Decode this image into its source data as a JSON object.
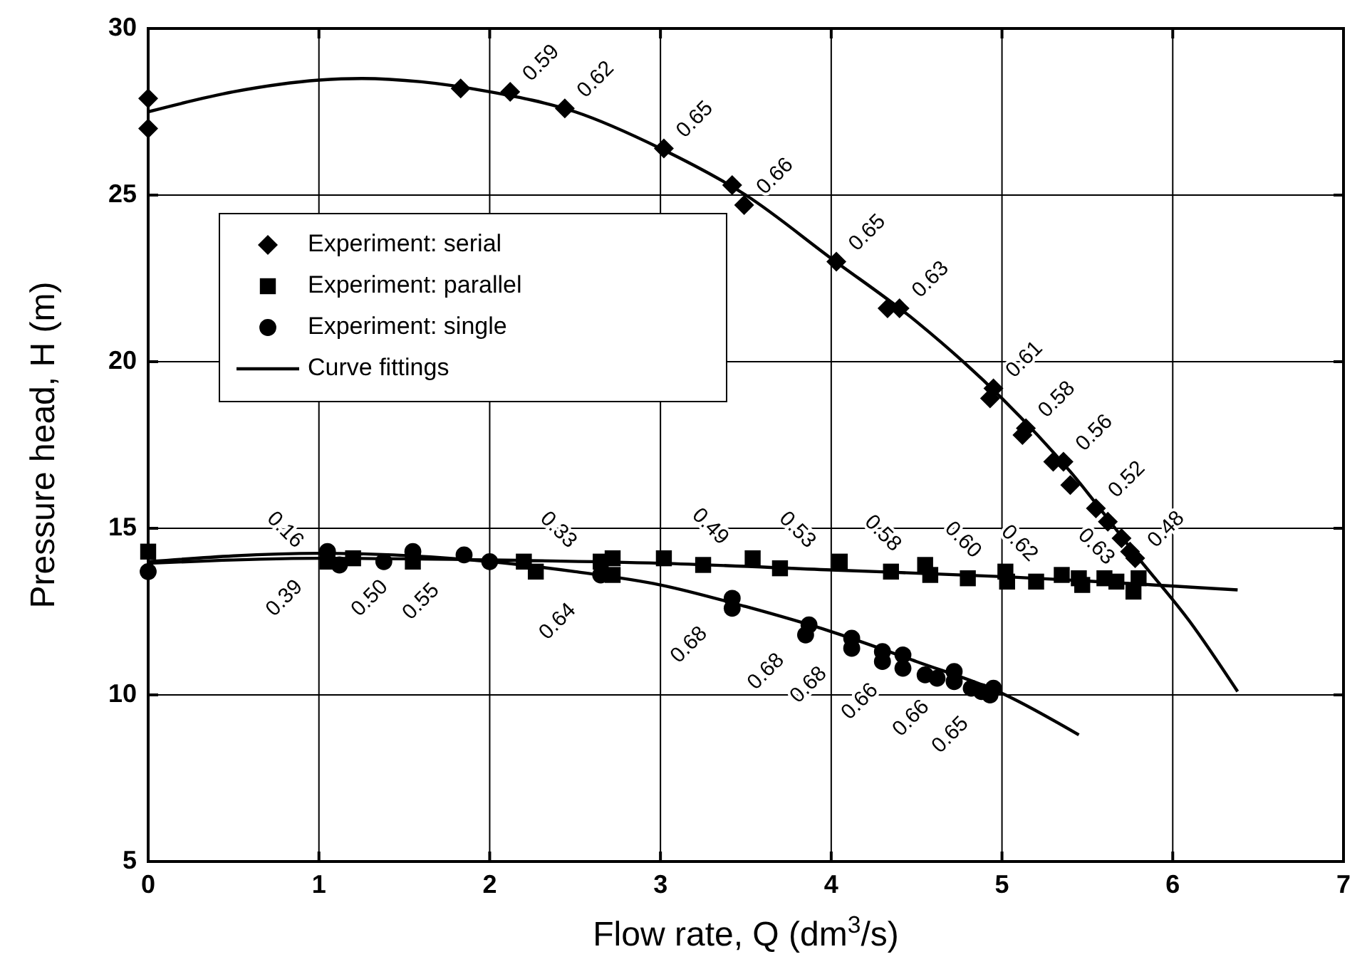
{
  "chart_data": {
    "type": "scatter",
    "xlabel": "Flow rate, Q (dm$^{3}$/s)",
    "ylabel": "Pressure head, H (m)",
    "xlim": [
      0,
      7
    ],
    "xticks": [
      0,
      1,
      2,
      3,
      4,
      5,
      6,
      7
    ],
    "ylim": [
      5,
      30
    ],
    "yticks": [
      5,
      10,
      15,
      20,
      25,
      30
    ],
    "grid": true,
    "legend": "top left",
    "series": [
      {
        "name": "Experiment: serial",
        "marker": "diamond",
        "color": "#000000",
        "x": [
          0,
          0,
          1.83,
          2.12,
          2.44,
          3.02,
          3.42,
          3.49,
          4.03,
          4.33,
          4.4,
          4.95,
          4.93,
          5.14,
          5.12,
          5.3,
          5.36,
          5.4,
          5.55,
          5.62,
          5.7,
          5.75,
          5.78
        ],
        "values": [
          27.9,
          27.0,
          28.2,
          28.1,
          27.6,
          26.4,
          25.3,
          24.7,
          23.0,
          21.6,
          21.6,
          19.2,
          18.9,
          18.0,
          17.8,
          17.0,
          17.0,
          16.3,
          15.6,
          15.2,
          14.7,
          14.3,
          14.1
        ]
      },
      {
        "name": "Experiment: parallel",
        "marker": "square",
        "color": "#000000",
        "x": [
          0,
          1.05,
          1.2,
          1.55,
          2.2,
          2.27,
          2.65,
          2.72,
          2.72,
          3.02,
          3.25,
          3.54,
          3.7,
          4.05,
          4.35,
          4.55,
          4.58,
          4.8,
          5.02,
          5.03,
          5.2,
          5.35,
          5.45,
          5.47,
          5.6,
          5.67,
          5.77,
          5.8
        ],
        "values": [
          14.3,
          14.0,
          14.1,
          14.0,
          14.0,
          13.7,
          14.0,
          14.1,
          13.6,
          14.1,
          13.9,
          14.1,
          13.8,
          14.0,
          13.7,
          13.9,
          13.6,
          13.5,
          13.7,
          13.4,
          13.4,
          13.6,
          13.5,
          13.3,
          13.5,
          13.4,
          13.1,
          13.5
        ]
      },
      {
        "name": "Experiment: single",
        "marker": "circle",
        "color": "#000000",
        "x": [
          0,
          1.05,
          1.12,
          1.38,
          1.55,
          1.85,
          2.0,
          2.65,
          3.42,
          3.42,
          3.87,
          3.85,
          4.12,
          4.12,
          4.3,
          4.3,
          4.42,
          4.42,
          4.55,
          4.62,
          4.72,
          4.72,
          4.82,
          4.88,
          4.95,
          4.93
        ],
        "values": [
          13.7,
          14.3,
          13.9,
          14.0,
          14.3,
          14.2,
          14.0,
          13.6,
          12.9,
          12.6,
          12.1,
          11.8,
          11.7,
          11.4,
          11.3,
          11.0,
          11.2,
          10.8,
          10.6,
          10.5,
          10.7,
          10.4,
          10.2,
          10.1,
          10.2,
          10.0
        ]
      },
      {
        "name": "Curve fittings",
        "type": "line",
        "marker": "none",
        "color": "#000000",
        "x": [
          0,
          0.5,
          1.0,
          1.25,
          1.6,
          2.0,
          2.5,
          3.0,
          3.5,
          4.0,
          4.5,
          5.0,
          5.4,
          5.8,
          6.1,
          6.38
        ],
        "values": [
          27.5,
          28.1,
          28.45,
          28.5,
          28.4,
          28.1,
          27.5,
          26.4,
          25.0,
          23.1,
          21.2,
          18.9,
          16.7,
          14.1,
          12.2,
          10.1
        ]
      },
      {
        "type": "line",
        "marker": "none",
        "color": "#000000",
        "x": [
          0,
          1,
          2,
          3,
          4,
          5,
          6.38
        ],
        "values": [
          13.95,
          14.1,
          14.05,
          13.95,
          13.75,
          13.55,
          13.15
        ]
      },
      {
        "type": "line",
        "marker": "none",
        "color": "#000000",
        "x": [
          0,
          1,
          2,
          2.5,
          3,
          3.5,
          4,
          4.5,
          5,
          5.45
        ],
        "values": [
          14.0,
          14.25,
          14.0,
          13.7,
          13.3,
          12.65,
          11.9,
          11.0,
          10.05,
          8.8
        ]
      }
    ],
    "annotations": [
      {
        "text": "0.59",
        "x": 2.12,
        "y": 28.1
      },
      {
        "text": "0.62",
        "x": 2.44,
        "y": 27.6
      },
      {
        "text": "0.65",
        "x": 3.02,
        "y": 26.4
      },
      {
        "text": "0.66",
        "x": 3.49,
        "y": 24.7
      },
      {
        "text": "0.65",
        "x": 4.03,
        "y": 23.0
      },
      {
        "text": "0.63",
        "x": 4.4,
        "y": 21.6
      },
      {
        "text": "0.61",
        "x": 4.95,
        "y": 19.2
      },
      {
        "text": "0.58",
        "x": 5.14,
        "y": 18.0
      },
      {
        "text": "0.56",
        "x": 5.36,
        "y": 17.0
      },
      {
        "text": "0.52",
        "x": 5.55,
        "y": 15.6
      },
      {
        "text": "0.48",
        "x": 5.78,
        "y": 14.1
      },
      {
        "text": "0.16",
        "x": 1.05,
        "y": 14.0
      },
      {
        "text": "0.33",
        "x": 2.65,
        "y": 14.0
      },
      {
        "text": "0.49",
        "x": 3.54,
        "y": 14.1
      },
      {
        "text": "0.53",
        "x": 4.05,
        "y": 14.0
      },
      {
        "text": "0.58",
        "x": 4.55,
        "y": 13.9
      },
      {
        "text": "0.60",
        "x": 5.02,
        "y": 13.7
      },
      {
        "text": "0.62",
        "x": 5.35,
        "y": 13.6
      },
      {
        "text": "0.63",
        "x": 5.8,
        "y": 13.5
      },
      {
        "text": "0.39",
        "x": 1.05,
        "y": 14.3
      },
      {
        "text": "0.50",
        "x": 1.55,
        "y": 14.3
      },
      {
        "text": "0.55",
        "x": 1.85,
        "y": 14.2
      },
      {
        "text": "0.64",
        "x": 2.65,
        "y": 13.6
      },
      {
        "text": "0.68",
        "x": 3.42,
        "y": 12.9
      },
      {
        "text": "0.68",
        "x": 3.87,
        "y": 12.1
      },
      {
        "text": "0.68",
        "x": 4.12,
        "y": 11.7
      },
      {
        "text": "0.66",
        "x": 4.42,
        "y": 11.2
      },
      {
        "text": "0.66",
        "x": 4.72,
        "y": 10.7
      },
      {
        "text": "0.65",
        "x": 4.95,
        "y": 10.2
      }
    ]
  }
}
